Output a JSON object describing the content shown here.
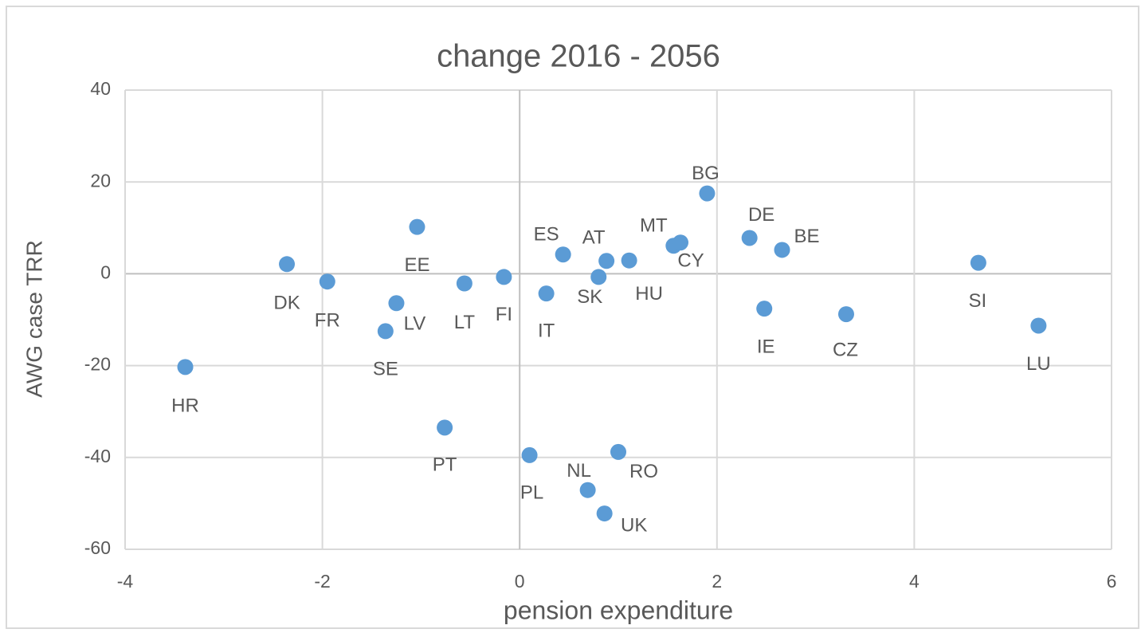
{
  "chart_data": {
    "type": "scatter",
    "title": "change 2016 - 2056",
    "x_label": "pension expenditure",
    "y_label": "AWG case TRR",
    "labels": [
      "HR",
      "DK",
      "FR",
      "EE",
      "LV",
      "SE",
      "LT",
      "FI",
      "PT",
      "ES",
      "IT",
      "SK",
      "AT",
      "HU",
      "PL",
      "NL",
      "UK",
      "RO",
      "MT",
      "CY",
      "BG",
      "DE",
      "BE",
      "IE",
      "CZ",
      "SI",
      "LU"
    ],
    "x": [
      -3.39,
      -2.36,
      -1.95,
      -1.04,
      -1.25,
      -1.36,
      -0.56,
      -0.16,
      -0.76,
      0.44,
      0.27,
      0.8,
      0.88,
      1.11,
      0.1,
      0.69,
      0.86,
      1.0,
      1.56,
      1.63,
      1.9,
      2.33,
      2.66,
      2.48,
      3.31,
      4.65,
      5.26
    ],
    "y": [
      -20.3,
      2.1,
      -1.7,
      10.2,
      -6.4,
      -12.5,
      -2.1,
      -0.7,
      -33.5,
      4.2,
      -4.3,
      -0.7,
      2.8,
      2.9,
      -39.5,
      -47.1,
      -52.2,
      -38.8,
      6.1,
      6.8,
      17.5,
      7.8,
      5.2,
      -7.6,
      -8.8,
      2.4,
      -11.3
    ],
    "color": "#5b9bd5",
    "xlim": [
      -4,
      6
    ],
    "xticks": [
      -4,
      -2,
      0,
      2,
      4,
      6
    ],
    "ylim": [
      -60,
      40
    ],
    "yticks": [
      -60,
      -40,
      -20,
      0,
      20,
      40
    ],
    "grid": true
  }
}
